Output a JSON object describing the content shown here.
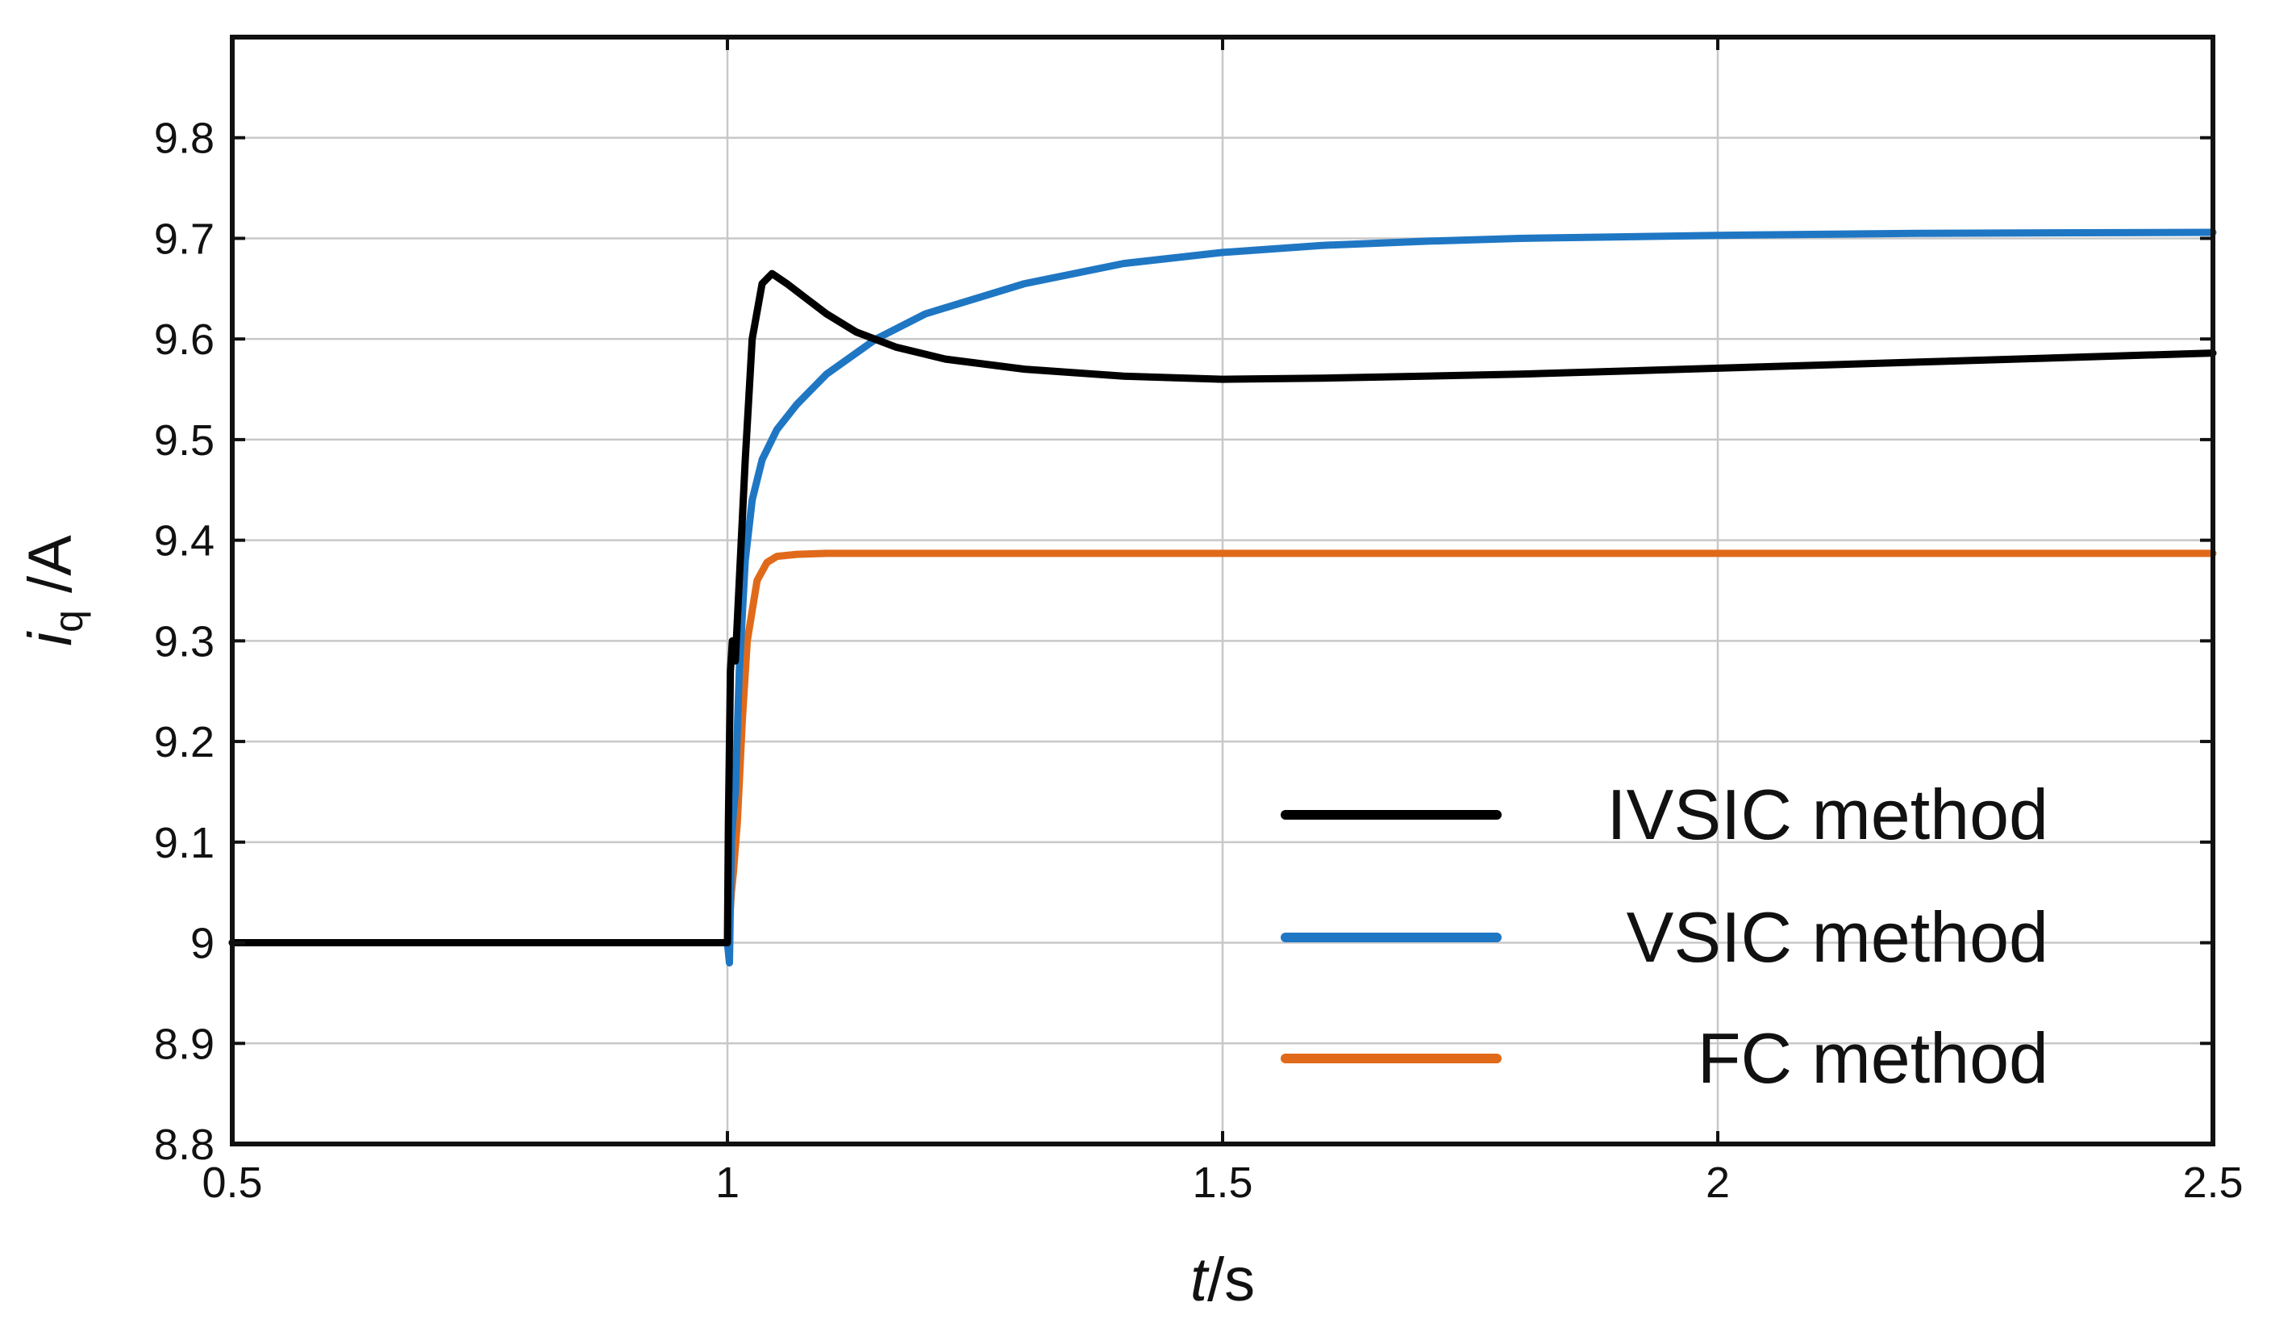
{
  "chart_data": {
    "type": "line",
    "xlabel": "t/s",
    "xlabel_italic_part": "t",
    "xlabel_rest": "/s",
    "ylabel_main": "i",
    "ylabel_subscript": "q",
    "ylabel_rest": " /A",
    "xlim": [
      0.5,
      2.5
    ],
    "ylim": [
      8.8,
      9.9
    ],
    "x_ticks": [
      0.5,
      1,
      1.5,
      2,
      2.5
    ],
    "x_tick_labels": [
      "0.5",
      "1",
      "1.5",
      "2",
      "2.5"
    ],
    "y_ticks": [
      8.8,
      8.9,
      9.0,
      9.1,
      9.2,
      9.3,
      9.4,
      9.5,
      9.6,
      9.7,
      9.8
    ],
    "y_tick_labels": [
      "8.8",
      "8.9",
      "9",
      "9.1",
      "9.2",
      "9.3",
      "9.4",
      "9.5",
      "9.6",
      "9.7",
      "9.8"
    ],
    "grid": true,
    "legend_position": "bottom-right",
    "series": [
      {
        "name": "IVSIC method",
        "color": "#000000",
        "x": [
          0.5,
          1.0,
          1.001,
          1.003,
          1.005,
          1.008,
          1.012,
          1.018,
          1.025,
          1.035,
          1.045,
          1.06,
          1.08,
          1.1,
          1.13,
          1.17,
          1.22,
          1.3,
          1.4,
          1.5,
          1.6,
          1.8,
          2.0,
          2.2,
          2.5
        ],
        "y": [
          9.0,
          9.0,
          9.12,
          9.27,
          9.3,
          9.28,
          9.36,
          9.48,
          9.6,
          9.655,
          9.665,
          9.655,
          9.64,
          9.625,
          9.607,
          9.592,
          9.58,
          9.57,
          9.563,
          9.56,
          9.561,
          9.565,
          9.571,
          9.577,
          9.586
        ]
      },
      {
        "name": "VSIC method",
        "color": "#1f77c4",
        "x": [
          0.5,
          1.0,
          1.002,
          1.004,
          1.006,
          1.008,
          1.012,
          1.018,
          1.025,
          1.035,
          1.05,
          1.07,
          1.1,
          1.15,
          1.2,
          1.3,
          1.4,
          1.5,
          1.6,
          1.7,
          1.8,
          2.0,
          2.2,
          2.5
        ],
        "y": [
          9.0,
          9.0,
          8.98,
          9.1,
          9.13,
          9.15,
          9.27,
          9.38,
          9.44,
          9.48,
          9.51,
          9.535,
          9.565,
          9.6,
          9.625,
          9.655,
          9.675,
          9.686,
          9.693,
          9.697,
          9.7,
          9.703,
          9.705,
          9.706
        ]
      },
      {
        "name": "FC method",
        "color": "#e06a1a",
        "x": [
          0.5,
          1.0,
          1.002,
          1.004,
          1.006,
          1.01,
          1.015,
          1.02,
          1.03,
          1.04,
          1.05,
          1.07,
          1.1,
          1.3,
          1.6,
          2.0,
          2.5
        ],
        "y": [
          9.0,
          9.0,
          9.02,
          9.05,
          9.07,
          9.12,
          9.22,
          9.3,
          9.36,
          9.378,
          9.384,
          9.386,
          9.387,
          9.387,
          9.387,
          9.387,
          9.387
        ]
      }
    ]
  }
}
